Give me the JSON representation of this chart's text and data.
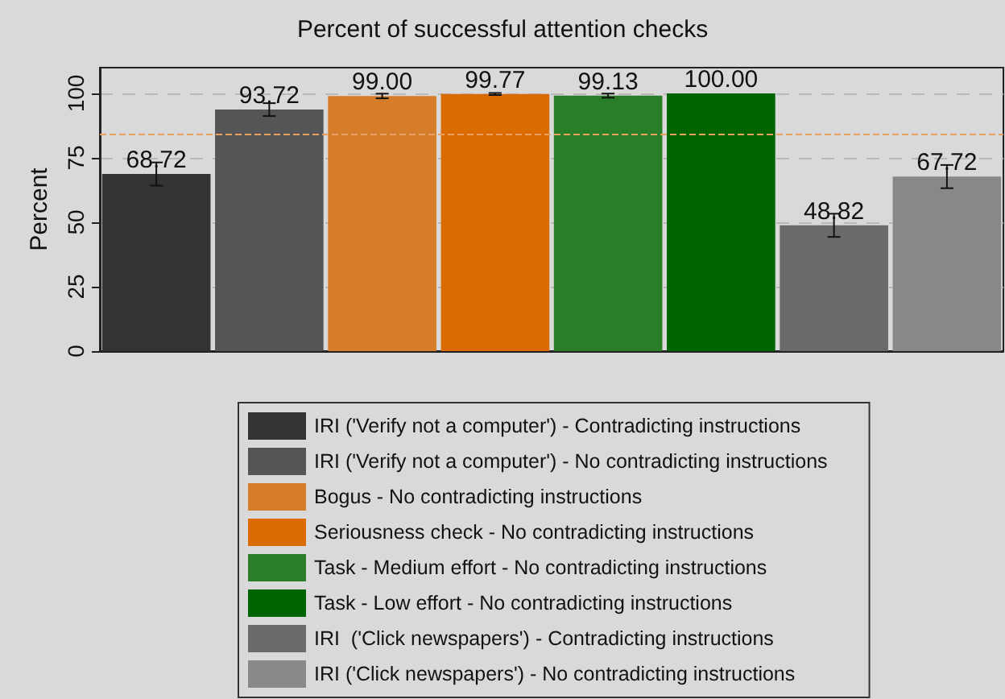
{
  "chart_data": {
    "type": "bar",
    "title": "Percent of successful attention checks",
    "ylabel": "Percent",
    "categories": [
      null
    ],
    "series": [
      {
        "name": "IRI ('Verify not a computer') - Contradicting instructions",
        "color": "#333333",
        "values": [
          68.72
        ],
        "errors": [
          4.5
        ],
        "value_labels": [
          "68.72"
        ]
      },
      {
        "name": "IRI ('Verify not a computer') - No contradicting instructions",
        "color": "#555555",
        "values": [
          93.72
        ],
        "errors": [
          2.5
        ],
        "value_labels": [
          "93.72"
        ]
      },
      {
        "name": "Bogus - No contradicting instructions",
        "color": "#d67d2b",
        "values": [
          99.0
        ],
        "errors": [
          0.9
        ],
        "value_labels": [
          "99.00"
        ]
      },
      {
        "name": "Seriousness check - No contradicting instructions",
        "color": "#d96b00",
        "values": [
          99.77
        ],
        "errors": [
          0.4
        ],
        "value_labels": [
          "99.77"
        ]
      },
      {
        "name": "Task - Medium effort - No contradicting instructions",
        "color": "#2a7e2a",
        "values": [
          99.13
        ],
        "errors": [
          0.8
        ],
        "value_labels": [
          "99.13"
        ]
      },
      {
        "name": "Task - Low effort - No contradicting instructions",
        "color": "#006400",
        "values": [
          100.0
        ],
        "errors": [
          null
        ],
        "value_labels": [
          "100.00"
        ]
      },
      {
        "name": "IRI  ('Click newspapers') - Contradicting instructions",
        "color": "#6a6a6a",
        "values": [
          48.82
        ],
        "errors": [
          4.5
        ],
        "value_labels": [
          "48.82"
        ]
      },
      {
        "name": "IRI ('Click newspapers') - No contradicting instructions",
        "color": "#888888",
        "values": [
          67.72
        ],
        "errors": [
          4.5
        ],
        "value_labels": [
          "67.72"
        ]
      }
    ],
    "ylim": [
      0,
      110
    ],
    "yticks": [
      0,
      25,
      50,
      75,
      100
    ],
    "grid": "y",
    "legend": "bottom",
    "ref_lines": [
      {
        "axis": "y",
        "value": 84,
        "color": "#e8a060",
        "line_style": "dashed"
      }
    ]
  }
}
